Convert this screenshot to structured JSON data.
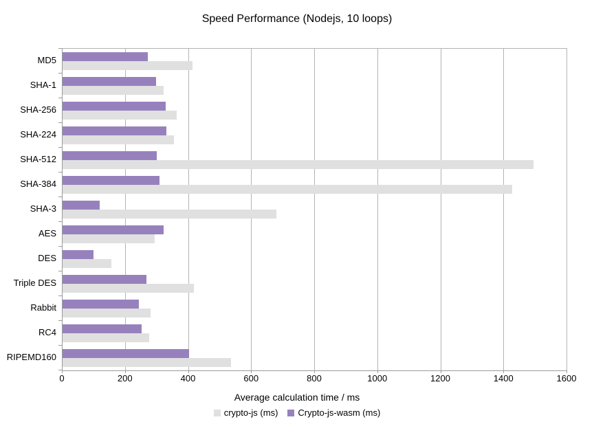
{
  "chart_data": {
    "type": "bar",
    "orientation": "horizontal",
    "title": "Speed Performance (Nodejs, 10 loops)",
    "xlabel": "Average calculation time / ms",
    "categories": [
      "MD5",
      "SHA-1",
      "SHA-256",
      "SHA-224",
      "SHA-512",
      "SHA-384",
      "SHA-3",
      "AES",
      "DES",
      "Triple DES",
      "Rabbit",
      "RC4",
      "RIPEMD160"
    ],
    "series": [
      {
        "name": "crypto-js (ms)",
        "color": "#e0e0e0",
        "values": [
          413,
          320,
          362,
          353,
          1493,
          1425,
          678,
          292,
          155,
          417,
          278,
          275,
          535
        ]
      },
      {
        "name": "Crypto-js-wasm (ms)",
        "color": "#9781bd",
        "values": [
          270,
          296,
          328,
          330,
          299,
          308,
          118,
          320,
          99,
          266,
          242,
          250,
          401
        ]
      }
    ],
    "bar_draw_order": [
      "Crypto-js-wasm (ms)",
      "crypto-js (ms)"
    ],
    "xlim": [
      0,
      1600
    ],
    "xticks": [
      0,
      200,
      400,
      600,
      800,
      1000,
      1200,
      1400,
      1600
    ],
    "grid": "vertical",
    "legend_position": "bottom",
    "colors": {
      "background": "#ffffff",
      "gridline": "#b3b3b3",
      "axis": "#9a9a9a",
      "text": "#000000"
    }
  }
}
